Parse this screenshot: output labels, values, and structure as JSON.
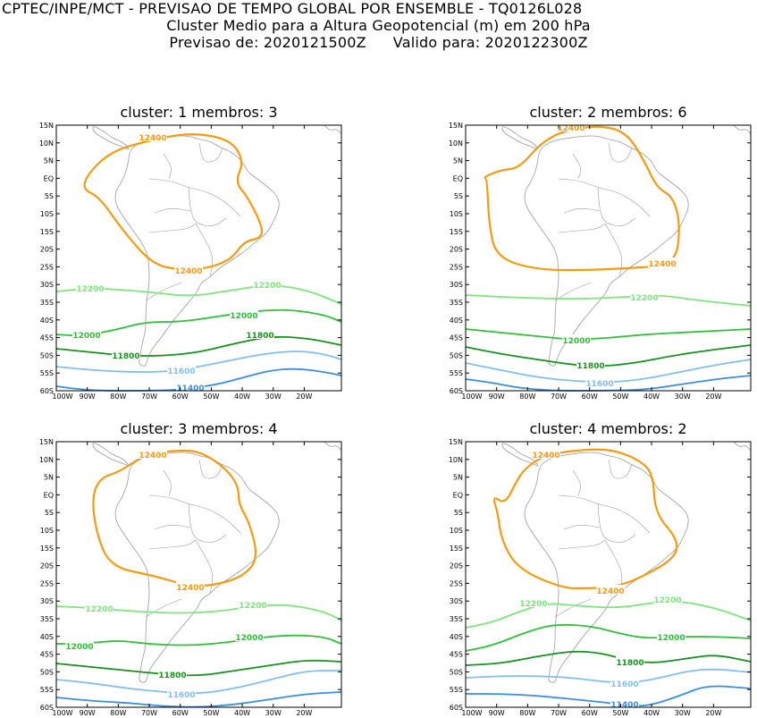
{
  "header": {
    "line1": "CPTEC/INPE/MCT - PREVISAO DE TEMPO GLOBAL POR ENSEMBLE - TQ0126L028",
    "line2": "Cluster Medio para a Altura Geopotencial (m) em 200 hPa",
    "line3_a": "Previsao de: 2020121500Z",
    "line3_b": "Valido para: 2020122300Z"
  },
  "axes": {
    "lat_labels": [
      "15N",
      "10N",
      "5N",
      "EQ",
      "5S",
      "10S",
      "15S",
      "20S",
      "25S",
      "30S",
      "35S",
      "40S",
      "45S",
      "50S",
      "55S",
      "60S"
    ],
    "lon_labels": [
      "100W",
      "90W",
      "80W",
      "70W",
      "60W",
      "50W",
      "40W",
      "30W",
      "20W"
    ]
  },
  "colors": {
    "c12400": "#f59b10",
    "c12200": "#7ce67c",
    "c12000": "#2fbf3a",
    "c11800": "#16921e",
    "c11600": "#80bff0",
    "c11400": "#3a8ee0",
    "land": "#9a9a9a"
  },
  "panels": [
    {
      "title": "cluster: 1   membros: 3",
      "labels": [
        "12400",
        "12400",
        "12200",
        "12200",
        "12000",
        "12000",
        "11800",
        "11800",
        "11600",
        "11400"
      ]
    },
    {
      "title": "cluster: 2   membros: 6",
      "labels": [
        "12400",
        "12400",
        "12200",
        "12000",
        "11800",
        "11600"
      ]
    },
    {
      "title": "cluster: 3   membros: 4",
      "labels": [
        "12400",
        "12400",
        "12200",
        "12200",
        "12000",
        "12000",
        "11800",
        "11600"
      ]
    },
    {
      "title": "cluster: 4   membros: 2",
      "labels": [
        "12400",
        "12400",
        "12200",
        "12200",
        "12000",
        "11800",
        "11600",
        "11400"
      ]
    }
  ]
}
